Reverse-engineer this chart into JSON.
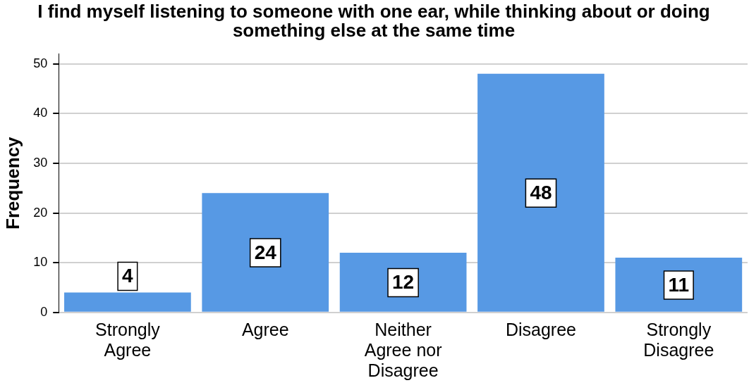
{
  "chart_data": {
    "type": "bar",
    "title": "I find myself listening to someone with one ear, while thinking about or doing something else at the same time",
    "ylabel": "Frequency",
    "categories": [
      "Strongly Agree",
      "Agree",
      "Neither Agree nor Disagree",
      "Disagree",
      "Strongly Disagree"
    ],
    "values": [
      4,
      24,
      12,
      48,
      11
    ],
    "color": "#5799e4",
    "ylim": [
      0,
      52
    ],
    "yticks": [
      0,
      10,
      20,
      30,
      40,
      50
    ],
    "grid": "y",
    "data_labels": true,
    "legend": false
  }
}
